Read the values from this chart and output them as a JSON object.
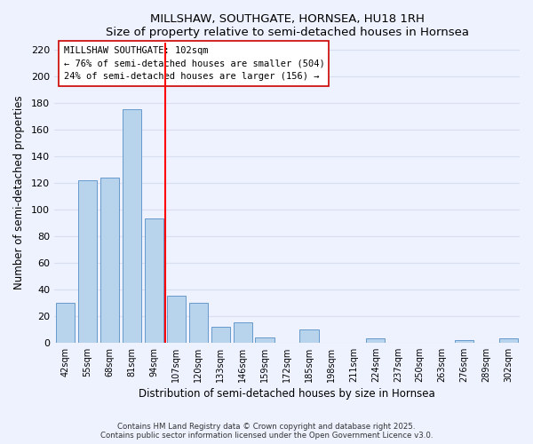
{
  "title": "MILLSHAW, SOUTHGATE, HORNSEA, HU18 1RH",
  "subtitle": "Size of property relative to semi-detached houses in Hornsea",
  "xlabel": "Distribution of semi-detached houses by size in Hornsea",
  "ylabel": "Number of semi-detached properties",
  "bar_labels": [
    "42sqm",
    "55sqm",
    "68sqm",
    "81sqm",
    "94sqm",
    "107sqm",
    "120sqm",
    "133sqm",
    "146sqm",
    "159sqm",
    "172sqm",
    "185sqm",
    "198sqm",
    "211sqm",
    "224sqm",
    "237sqm",
    "250sqm",
    "263sqm",
    "276sqm",
    "289sqm",
    "302sqm"
  ],
  "bar_values": [
    30,
    122,
    124,
    175,
    93,
    35,
    30,
    12,
    15,
    4,
    0,
    10,
    0,
    0,
    3,
    0,
    0,
    0,
    2,
    0,
    3
  ],
  "bar_color": "#b8d4ec",
  "bar_edge_color": "#6699cc",
  "vline_color": "red",
  "annotation_title": "MILLSHAW SOUTHGATE: 102sqm",
  "annotation_line1": "← 76% of semi-detached houses are smaller (504)",
  "annotation_line2": "24% of semi-detached houses are larger (156) →",
  "ylim": [
    0,
    225
  ],
  "yticks": [
    0,
    20,
    40,
    60,
    80,
    100,
    120,
    140,
    160,
    180,
    200,
    220
  ],
  "footnote1": "Contains HM Land Registry data © Crown copyright and database right 2025.",
  "footnote2": "Contains public sector information licensed under the Open Government Licence v3.0.",
  "background_color": "#eef2ff",
  "grid_color": "#d8dff0"
}
